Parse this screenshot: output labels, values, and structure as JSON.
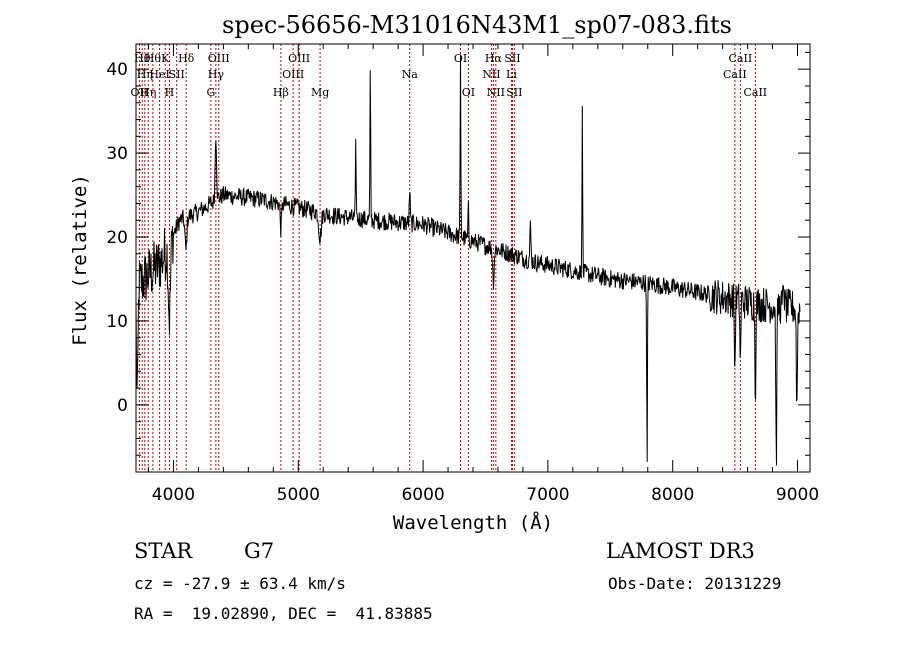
{
  "chart_data": {
    "type": "line",
    "title": "spec-56656-M31016N43M1_sp07-083.fits",
    "xlabel": "Wavelength (Å)",
    "ylabel": "Flux (relative)",
    "xlim": [
      3700,
      9100
    ],
    "ylim": [
      -8,
      43
    ],
    "xticks": [
      4000,
      5000,
      6000,
      7000,
      8000,
      9000
    ],
    "yticks": [
      0,
      10,
      20,
      30,
      40
    ],
    "continuum": [
      [
        3700,
        14
      ],
      [
        3900,
        17
      ],
      [
        4050,
        22
      ],
      [
        4200,
        23
      ],
      [
        4400,
        25
      ],
      [
        4700,
        24.5
      ],
      [
        5000,
        23.5
      ],
      [
        5300,
        22.5
      ],
      [
        5600,
        22
      ],
      [
        6000,
        21.5
      ],
      [
        6300,
        20
      ],
      [
        6600,
        18.5
      ],
      [
        6900,
        17
      ],
      [
        7200,
        16
      ],
      [
        7500,
        15
      ],
      [
        7800,
        14.5
      ],
      [
        8100,
        13.7
      ],
      [
        8400,
        12.8
      ],
      [
        8700,
        12
      ],
      [
        9000,
        11.5
      ]
    ],
    "features": [
      {
        "x": 3710,
        "w": 8,
        "d": -14
      },
      {
        "x": 3968,
        "w": 12,
        "d": -9
      },
      {
        "x": 4100,
        "w": 10,
        "d": -4
      },
      {
        "x": 4340,
        "w": 8,
        "d": 8
      },
      {
        "x": 4861,
        "w": 8,
        "d": -3
      },
      {
        "x": 5175,
        "w": 14,
        "d": -3
      },
      {
        "x": 5461,
        "w": 4,
        "d": 9
      },
      {
        "x": 5577,
        "w": 4,
        "d": 18
      },
      {
        "x": 5893,
        "w": 5,
        "d": 4
      },
      {
        "x": 6300,
        "w": 4,
        "d": 21
      },
      {
        "x": 6363,
        "w": 4,
        "d": 4
      },
      {
        "x": 6563,
        "w": 8,
        "d": -4
      },
      {
        "x": 6860,
        "w": 6,
        "d": 4
      },
      {
        "x": 7276,
        "w": 4,
        "d": 19
      },
      {
        "x": 7795,
        "w": 4,
        "d": -23
      },
      {
        "x": 8498,
        "w": 5,
        "d": -9
      },
      {
        "x": 8542,
        "w": 5,
        "d": -8
      },
      {
        "x": 8662,
        "w": 5,
        "d": -11
      },
      {
        "x": 8830,
        "w": 6,
        "d": -19
      },
      {
        "x": 8890,
        "w": 6,
        "d": 3
      },
      {
        "x": 8995,
        "w": 6,
        "d": -12
      }
    ],
    "lines": [
      {
        "x": 3727,
        "label": "OII",
        "row": 3
      },
      {
        "x": 3750,
        "label": "Hθ",
        "row": 1
      },
      {
        "x": 3771,
        "label": "Hη",
        "row": 2
      },
      {
        "x": 3798,
        "label": "Hη",
        "row": 3
      },
      {
        "x": 3835,
        "label": "Hθ",
        "row": 1
      },
      {
        "x": 3889,
        "label": "HeI",
        "row": 2
      },
      {
        "x": 3934,
        "label": "K",
        "row": 1
      },
      {
        "x": 3968,
        "label": "H",
        "row": 3
      },
      {
        "x": 4026,
        "label": "SII",
        "row": 2
      },
      {
        "x": 4102,
        "label": "Hδ",
        "row": 1
      },
      {
        "x": 4300,
        "label": "G",
        "row": 3
      },
      {
        "x": 4340,
        "label": "Hγ",
        "row": 2
      },
      {
        "x": 4363,
        "label": "OIII",
        "row": 1
      },
      {
        "x": 4861,
        "label": "Hβ",
        "row": 3
      },
      {
        "x": 4959,
        "label": "OIII",
        "row": 2
      },
      {
        "x": 5007,
        "label": "OIII",
        "row": 1
      },
      {
        "x": 5175,
        "label": "Mg",
        "row": 3
      },
      {
        "x": 5893,
        "label": "Na",
        "row": 2
      },
      {
        "x": 6300,
        "label": "OI",
        "row": 1
      },
      {
        "x": 6363,
        "label": "OI",
        "row": 3
      },
      {
        "x": 6548,
        "label": "NII",
        "row": 2
      },
      {
        "x": 6563,
        "label": "Hα",
        "row": 1
      },
      {
        "x": 6583,
        "label": "NII",
        "row": 3
      },
      {
        "x": 6708,
        "label": "Li",
        "row": 2
      },
      {
        "x": 6716,
        "label": "SII",
        "row": 1
      },
      {
        "x": 6731,
        "label": "SII",
        "row": 3
      },
      {
        "x": 8498,
        "label": "CaII",
        "row": 2
      },
      {
        "x": 8542,
        "label": "CaII",
        "row": 1
      },
      {
        "x": 8662,
        "label": "CaII",
        "row": 3
      }
    ]
  },
  "info": {
    "class": "STAR",
    "subclass": "G7",
    "survey": "LAMOST DR3",
    "cz": "cz = -27.9 ± 63.4 km/s",
    "obs_date": "Obs-Date: 20131229",
    "coords": "RA =  19.02890, DEC =  41.83885"
  }
}
